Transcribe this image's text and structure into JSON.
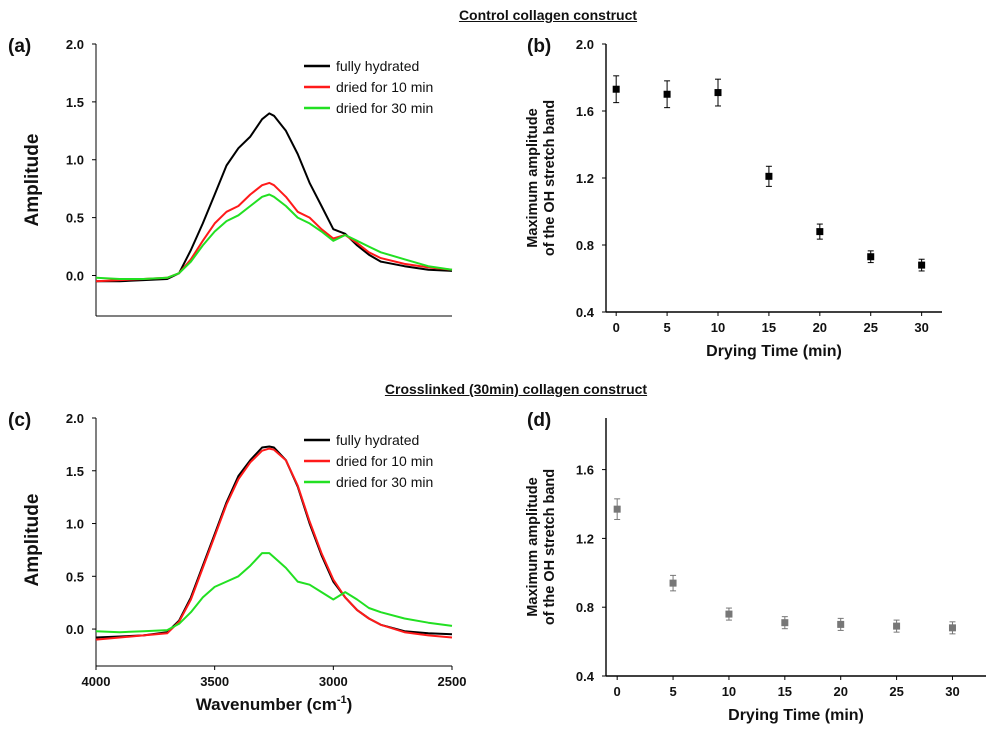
{
  "section_titles": {
    "top": "Control collagen construct",
    "bottom": "Crosslinked (30min) collagen construct"
  },
  "panel_labels": [
    "(a)",
    "(b)",
    "(c)",
    "(d)"
  ],
  "colors": {
    "fully_hydrated": "#000000",
    "dried_10": "#ff1a1a",
    "dried_30": "#22e022",
    "marker_b": "#000000",
    "marker_d": "#777777"
  },
  "chart_data": [
    {
      "id": "a",
      "type": "line",
      "title": "",
      "xlabel": "",
      "ylabel": "Amplitude",
      "xlim": [
        4000,
        2500
      ],
      "ylim": [
        -0.35,
        2.0
      ],
      "yticks": [
        "0.0",
        "0.5",
        "1.0",
        "1.5",
        "2.0"
      ],
      "xticks": [],
      "legend_position": "top-right",
      "series": [
        {
          "name": "fully hydrated",
          "x": [
            4000,
            3900,
            3800,
            3700,
            3650,
            3600,
            3550,
            3500,
            3450,
            3400,
            3350,
            3300,
            3270,
            3250,
            3200,
            3150,
            3100,
            3050,
            3000,
            2950,
            2900,
            2850,
            2800,
            2700,
            2600,
            2500
          ],
          "y": [
            -0.05,
            -0.05,
            -0.04,
            -0.03,
            0.02,
            0.22,
            0.45,
            0.7,
            0.95,
            1.1,
            1.2,
            1.35,
            1.4,
            1.38,
            1.25,
            1.05,
            0.8,
            0.6,
            0.4,
            0.36,
            0.26,
            0.18,
            0.12,
            0.08,
            0.05,
            0.04
          ]
        },
        {
          "name": "dried for 10 min",
          "x": [
            4000,
            3900,
            3800,
            3700,
            3650,
            3600,
            3550,
            3500,
            3450,
            3400,
            3350,
            3300,
            3270,
            3250,
            3200,
            3150,
            3100,
            3050,
            3000,
            2950,
            2900,
            2850,
            2800,
            2700,
            2600,
            2500
          ],
          "y": [
            -0.05,
            -0.04,
            -0.03,
            -0.02,
            0.02,
            0.14,
            0.3,
            0.45,
            0.55,
            0.6,
            0.7,
            0.78,
            0.8,
            0.78,
            0.68,
            0.55,
            0.5,
            0.4,
            0.32,
            0.35,
            0.28,
            0.2,
            0.15,
            0.1,
            0.07,
            0.05
          ]
        },
        {
          "name": "dried for 30 min",
          "x": [
            4000,
            3900,
            3800,
            3700,
            3650,
            3600,
            3550,
            3500,
            3450,
            3400,
            3350,
            3300,
            3270,
            3250,
            3200,
            3150,
            3100,
            3050,
            3000,
            2950,
            2900,
            2850,
            2800,
            2700,
            2600,
            2500
          ],
          "y": [
            -0.02,
            -0.03,
            -0.03,
            -0.02,
            0.02,
            0.12,
            0.26,
            0.38,
            0.47,
            0.52,
            0.6,
            0.68,
            0.7,
            0.68,
            0.6,
            0.5,
            0.45,
            0.38,
            0.3,
            0.35,
            0.3,
            0.25,
            0.2,
            0.14,
            0.08,
            0.05
          ]
        }
      ]
    },
    {
      "id": "b",
      "type": "scatter",
      "title": "",
      "xlabel": "Drying Time (min)",
      "ylabel": "Maximum amplitude of the OH stretch band",
      "xlim": [
        -1,
        32
      ],
      "ylim": [
        0.4,
        2.0
      ],
      "xticks": [
        "0",
        "5",
        "10",
        "15",
        "20",
        "25",
        "30"
      ],
      "yticks": [
        "0.4",
        "0.8",
        "1.2",
        "1.6",
        "2.0"
      ],
      "series": [
        {
          "x": [
            0,
            5,
            10,
            15,
            20,
            25,
            30
          ],
          "y": [
            1.73,
            1.7,
            1.71,
            1.21,
            0.88,
            0.73,
            0.68
          ],
          "error": [
            0.08,
            0.08,
            0.08,
            0.06,
            0.045,
            0.035,
            0.035
          ]
        }
      ]
    },
    {
      "id": "c",
      "type": "line",
      "title": "",
      "xlabel": "Wavenumber (cm⁻¹)",
      "ylabel": "Amplitude",
      "xlim": [
        4000,
        2500
      ],
      "ylim": [
        -0.35,
        2.0
      ],
      "xticks": [
        "4000",
        "3500",
        "3000",
        "2500"
      ],
      "yticks": [
        "0.0",
        "0.5",
        "1.0",
        "1.5",
        "2.0"
      ],
      "legend_position": "top-right",
      "series": [
        {
          "name": "fully hydrated",
          "x": [
            4000,
            3900,
            3800,
            3700,
            3650,
            3600,
            3550,
            3500,
            3450,
            3400,
            3350,
            3300,
            3270,
            3250,
            3200,
            3150,
            3100,
            3050,
            3000,
            2950,
            2900,
            2850,
            2800,
            2700,
            2600,
            2500
          ],
          "y": [
            -0.08,
            -0.07,
            -0.06,
            -0.03,
            0.08,
            0.3,
            0.6,
            0.9,
            1.2,
            1.45,
            1.6,
            1.72,
            1.73,
            1.72,
            1.6,
            1.35,
            1.0,
            0.7,
            0.45,
            0.3,
            0.18,
            0.1,
            0.04,
            -0.02,
            -0.04,
            -0.05
          ]
        },
        {
          "name": "dried for 10 min",
          "x": [
            4000,
            3900,
            3800,
            3700,
            3650,
            3600,
            3550,
            3500,
            3450,
            3400,
            3350,
            3300,
            3270,
            3250,
            3200,
            3150,
            3100,
            3050,
            3000,
            2950,
            2900,
            2850,
            2800,
            2700,
            2600,
            2500
          ],
          "y": [
            -0.1,
            -0.08,
            -0.06,
            -0.04,
            0.07,
            0.28,
            0.58,
            0.88,
            1.18,
            1.42,
            1.58,
            1.69,
            1.71,
            1.7,
            1.6,
            1.36,
            1.02,
            0.72,
            0.47,
            0.3,
            0.18,
            0.1,
            0.04,
            -0.03,
            -0.06,
            -0.08
          ]
        },
        {
          "name": "dried for 30 min",
          "x": [
            4000,
            3900,
            3800,
            3700,
            3650,
            3600,
            3550,
            3500,
            3450,
            3400,
            3350,
            3300,
            3270,
            3250,
            3200,
            3150,
            3100,
            3050,
            3000,
            2950,
            2900,
            2850,
            2800,
            2700,
            2600,
            2500
          ],
          "y": [
            -0.02,
            -0.03,
            -0.02,
            -0.01,
            0.05,
            0.16,
            0.3,
            0.4,
            0.45,
            0.5,
            0.6,
            0.72,
            0.72,
            0.68,
            0.58,
            0.45,
            0.42,
            0.35,
            0.28,
            0.35,
            0.28,
            0.2,
            0.16,
            0.1,
            0.06,
            0.03
          ]
        }
      ]
    },
    {
      "id": "d",
      "type": "scatter",
      "title": "",
      "xlabel": "Drying Time (min)",
      "ylabel": "Maximum amplitude of the OH stretch band",
      "xlim": [
        -1,
        33
      ],
      "ylim": [
        0.4,
        1.9
      ],
      "xticks": [
        "0",
        "5",
        "10",
        "15",
        "20",
        "25",
        "30"
      ],
      "yticks": [
        "0.4",
        "0.8",
        "1.2",
        "1.6"
      ],
      "series": [
        {
          "x": [
            0,
            5,
            10,
            15,
            20,
            25,
            30
          ],
          "y": [
            1.37,
            0.94,
            0.76,
            0.71,
            0.7,
            0.69,
            0.68
          ],
          "error": [
            0.06,
            0.045,
            0.035,
            0.035,
            0.035,
            0.035,
            0.035
          ]
        }
      ]
    }
  ]
}
